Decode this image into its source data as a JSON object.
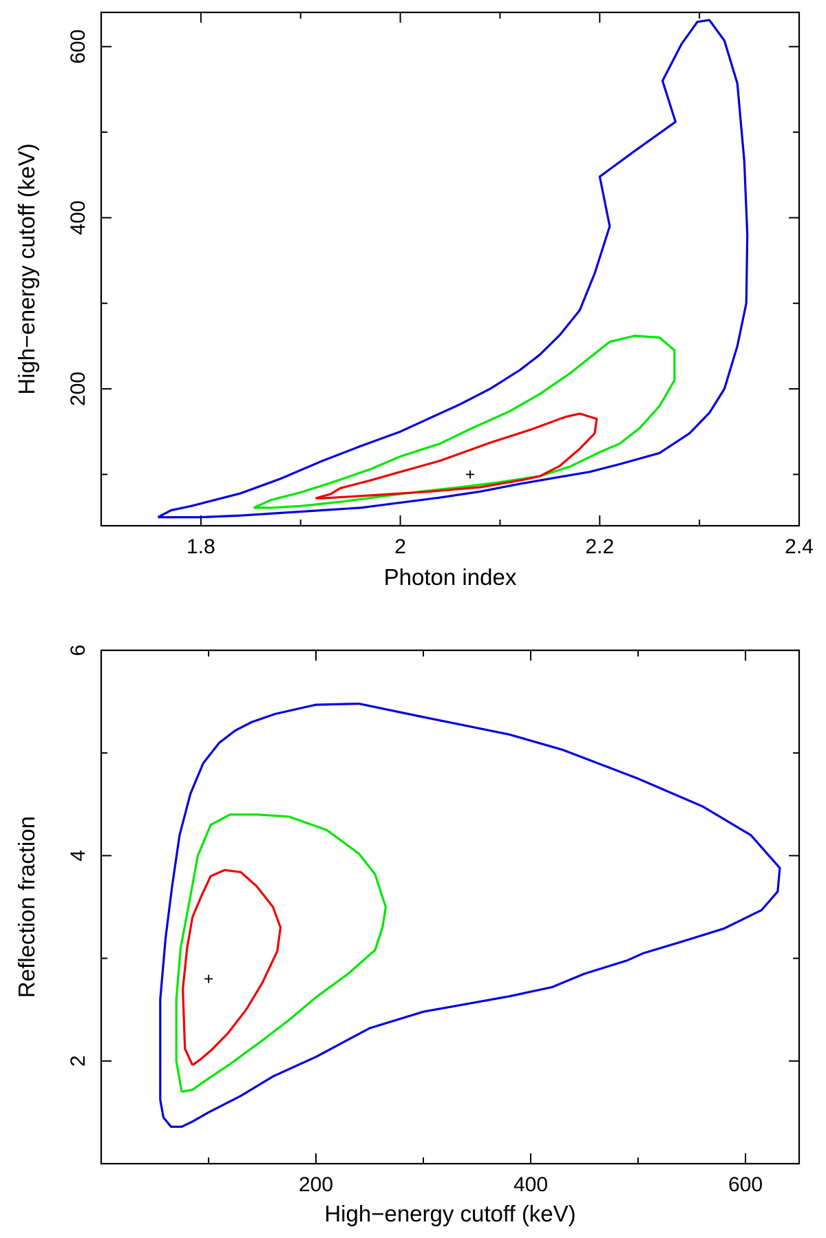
{
  "chart_data": [
    {
      "type": "contour",
      "title": "",
      "xlabel": "Photon index",
      "ylabel": "High−energy cutoff (keV)",
      "xlim": [
        1.7,
        2.4
      ],
      "ylim": [
        40,
        640
      ],
      "x_ticks_major": [
        1.8,
        2,
        2.2,
        2.4
      ],
      "x_tick_labels": [
        "1.8",
        "2",
        "2.2",
        "2.4"
      ],
      "x_ticks_minor": [
        1.7,
        1.9,
        2.1,
        2.3
      ],
      "y_ticks_major": [
        200,
        400,
        600
      ],
      "y_tick_labels": [
        "200",
        "400",
        "600"
      ],
      "y_ticks_minor": [
        100,
        300,
        500
      ],
      "best_fit": {
        "x": 2.07,
        "y": 100
      },
      "contours": [
        {
          "name": "outer",
          "color": "#0000e0",
          "points": [
            [
              1.757,
              50
            ],
            [
              1.77,
              58
            ],
            [
              1.79,
              63
            ],
            [
              1.84,
              78
            ],
            [
              1.88,
              95
            ],
            [
              1.92,
              115
            ],
            [
              1.96,
              133
            ],
            [
              2.0,
              150
            ],
            [
              2.03,
              166
            ],
            [
              2.06,
              182
            ],
            [
              2.09,
              200
            ],
            [
              2.12,
              222
            ],
            [
              2.14,
              240
            ],
            [
              2.16,
              263
            ],
            [
              2.18,
              292
            ],
            [
              2.195,
              335
            ],
            [
              2.21,
              390
            ],
            [
              2.2,
              448
            ],
            [
              2.235,
              478
            ],
            [
              2.276,
              512
            ],
            [
              2.263,
              560
            ],
            [
              2.282,
              603
            ],
            [
              2.298,
              629
            ],
            [
              2.31,
              631
            ],
            [
              2.325,
              607
            ],
            [
              2.338,
              557
            ],
            [
              2.345,
              466
            ],
            [
              2.348,
              380
            ],
            [
              2.347,
              300
            ],
            [
              2.338,
              250
            ],
            [
              2.325,
              200
            ],
            [
              2.31,
              172
            ],
            [
              2.29,
              148
            ],
            [
              2.26,
              125
            ],
            [
              2.22,
              112
            ],
            [
              2.19,
              103
            ],
            [
              2.16,
              97
            ],
            [
              2.12,
              89
            ],
            [
              2.08,
              80
            ],
            [
              2.04,
              73
            ],
            [
              2.0,
              67
            ],
            [
              1.96,
              61
            ],
            [
              1.92,
              58
            ],
            [
              1.88,
              55
            ],
            [
              1.84,
              52
            ],
            [
              1.8,
              50
            ],
            [
              1.757,
              50
            ]
          ]
        },
        {
          "name": "middle",
          "color": "#00e800",
          "points": [
            [
              1.853,
              61
            ],
            [
              1.87,
              70
            ],
            [
              1.9,
              79
            ],
            [
              1.93,
              90
            ],
            [
              1.97,
              106
            ],
            [
              2.0,
              121
            ],
            [
              2.04,
              136
            ],
            [
              2.07,
              153
            ],
            [
              2.11,
              174
            ],
            [
              2.14,
              194
            ],
            [
              2.17,
              218
            ],
            [
              2.21,
              255
            ],
            [
              2.235,
              262
            ],
            [
              2.26,
              260
            ],
            [
              2.275,
              245
            ],
            [
              2.275,
              210
            ],
            [
              2.26,
              180
            ],
            [
              2.24,
              154
            ],
            [
              2.22,
              136
            ],
            [
              2.2,
              126
            ],
            [
              2.17,
              109
            ],
            [
              2.14,
              98
            ],
            [
              2.1,
              91
            ],
            [
              2.06,
              85
            ],
            [
              2.02,
              80
            ],
            [
              1.98,
              74
            ],
            [
              1.94,
              68
            ],
            [
              1.9,
              63
            ],
            [
              1.87,
              61
            ],
            [
              1.853,
              61
            ]
          ]
        },
        {
          "name": "inner",
          "color": "#f00000",
          "points": [
            [
              1.915,
              72
            ],
            [
              1.93,
              77
            ],
            [
              1.94,
              84
            ],
            [
              1.97,
              93
            ],
            [
              2.0,
              103
            ],
            [
              2.04,
              116
            ],
            [
              2.09,
              137
            ],
            [
              2.13,
              152
            ],
            [
              2.165,
              167
            ],
            [
              2.18,
              171
            ],
            [
              2.197,
              165
            ],
            [
              2.195,
              148
            ],
            [
              2.18,
              130
            ],
            [
              2.16,
              110
            ],
            [
              2.14,
              98
            ],
            [
              2.12,
              93
            ],
            [
              2.08,
              85
            ],
            [
              2.03,
              80
            ],
            [
              1.99,
              77
            ],
            [
              1.95,
              74
            ],
            [
              1.92,
              72
            ],
            [
              1.915,
              72
            ]
          ]
        }
      ]
    },
    {
      "type": "contour",
      "title": "",
      "xlabel": "High−energy cutoff (keV)",
      "ylabel": "Reflection fraction",
      "xlim": [
        0,
        650
      ],
      "ylim": [
        1,
        6
      ],
      "x_ticks_major": [
        200,
        400,
        600
      ],
      "x_tick_labels": [
        "200",
        "400",
        "600"
      ],
      "x_ticks_minor": [
        100,
        300,
        500
      ],
      "y_ticks_major": [
        2,
        4,
        6
      ],
      "y_tick_labels": [
        "2",
        "4",
        "6"
      ],
      "y_ticks_minor": [
        1,
        3,
        5
      ],
      "best_fit": {
        "x": 100,
        "y": 2.8
      },
      "contours": [
        {
          "name": "outer",
          "color": "#0000e0",
          "points": [
            [
              55,
              1.62
            ],
            [
              55,
              2.6
            ],
            [
              60,
              3.2
            ],
            [
              66,
              3.7
            ],
            [
              73,
              4.2
            ],
            [
              83,
              4.6
            ],
            [
              95,
              4.9
            ],
            [
              110,
              5.1
            ],
            [
              125,
              5.22
            ],
            [
              140,
              5.3
            ],
            [
              162,
              5.38
            ],
            [
              200,
              5.47
            ],
            [
              240,
              5.48
            ],
            [
              300,
              5.35
            ],
            [
              380,
              5.18
            ],
            [
              430,
              5.03
            ],
            [
              500,
              4.75
            ],
            [
              560,
              4.48
            ],
            [
              605,
              4.2
            ],
            [
              632,
              3.88
            ],
            [
              630,
              3.65
            ],
            [
              615,
              3.47
            ],
            [
              580,
              3.29
            ],
            [
              540,
              3.16
            ],
            [
              505,
              3.05
            ],
            [
              490,
              2.98
            ],
            [
              450,
              2.85
            ],
            [
              420,
              2.72
            ],
            [
              380,
              2.63
            ],
            [
              300,
              2.48
            ],
            [
              250,
              2.32
            ],
            [
              200,
              2.04
            ],
            [
              160,
              1.85
            ],
            [
              130,
              1.66
            ],
            [
              100,
              1.5
            ],
            [
              85,
              1.41
            ],
            [
              75,
              1.36
            ],
            [
              65,
              1.36
            ],
            [
              58,
              1.45
            ],
            [
              55,
              1.62
            ]
          ]
        },
        {
          "name": "middle",
          "color": "#00e800",
          "points": [
            [
              75,
              1.7
            ],
            [
              70,
              2.0
            ],
            [
              70,
              2.6
            ],
            [
              74,
              3.1
            ],
            [
              83,
              3.6
            ],
            [
              90,
              4.0
            ],
            [
              102,
              4.3
            ],
            [
              120,
              4.4
            ],
            [
              145,
              4.4
            ],
            [
              175,
              4.38
            ],
            [
              210,
              4.25
            ],
            [
              240,
              4.02
            ],
            [
              255,
              3.82
            ],
            [
              265,
              3.5
            ],
            [
              262,
              3.3
            ],
            [
              255,
              3.08
            ],
            [
              230,
              2.85
            ],
            [
              200,
              2.62
            ],
            [
              175,
              2.4
            ],
            [
              150,
              2.2
            ],
            [
              120,
              1.97
            ],
            [
              100,
              1.83
            ],
            [
              85,
              1.72
            ],
            [
              75,
              1.7
            ]
          ]
        },
        {
          "name": "inner",
          "color": "#f00000",
          "points": [
            [
              85,
              1.96
            ],
            [
              78,
              2.12
            ],
            [
              76,
              2.7
            ],
            [
              80,
              3.1
            ],
            [
              85,
              3.4
            ],
            [
              93,
              3.6
            ],
            [
              102,
              3.8
            ],
            [
              115,
              3.86
            ],
            [
              130,
              3.84
            ],
            [
              145,
              3.7
            ],
            [
              160,
              3.5
            ],
            [
              167,
              3.3
            ],
            [
              164,
              3.07
            ],
            [
              150,
              2.76
            ],
            [
              135,
              2.5
            ],
            [
              118,
              2.27
            ],
            [
              103,
              2.11
            ],
            [
              93,
              2.02
            ],
            [
              85,
              1.96
            ]
          ]
        }
      ]
    }
  ]
}
